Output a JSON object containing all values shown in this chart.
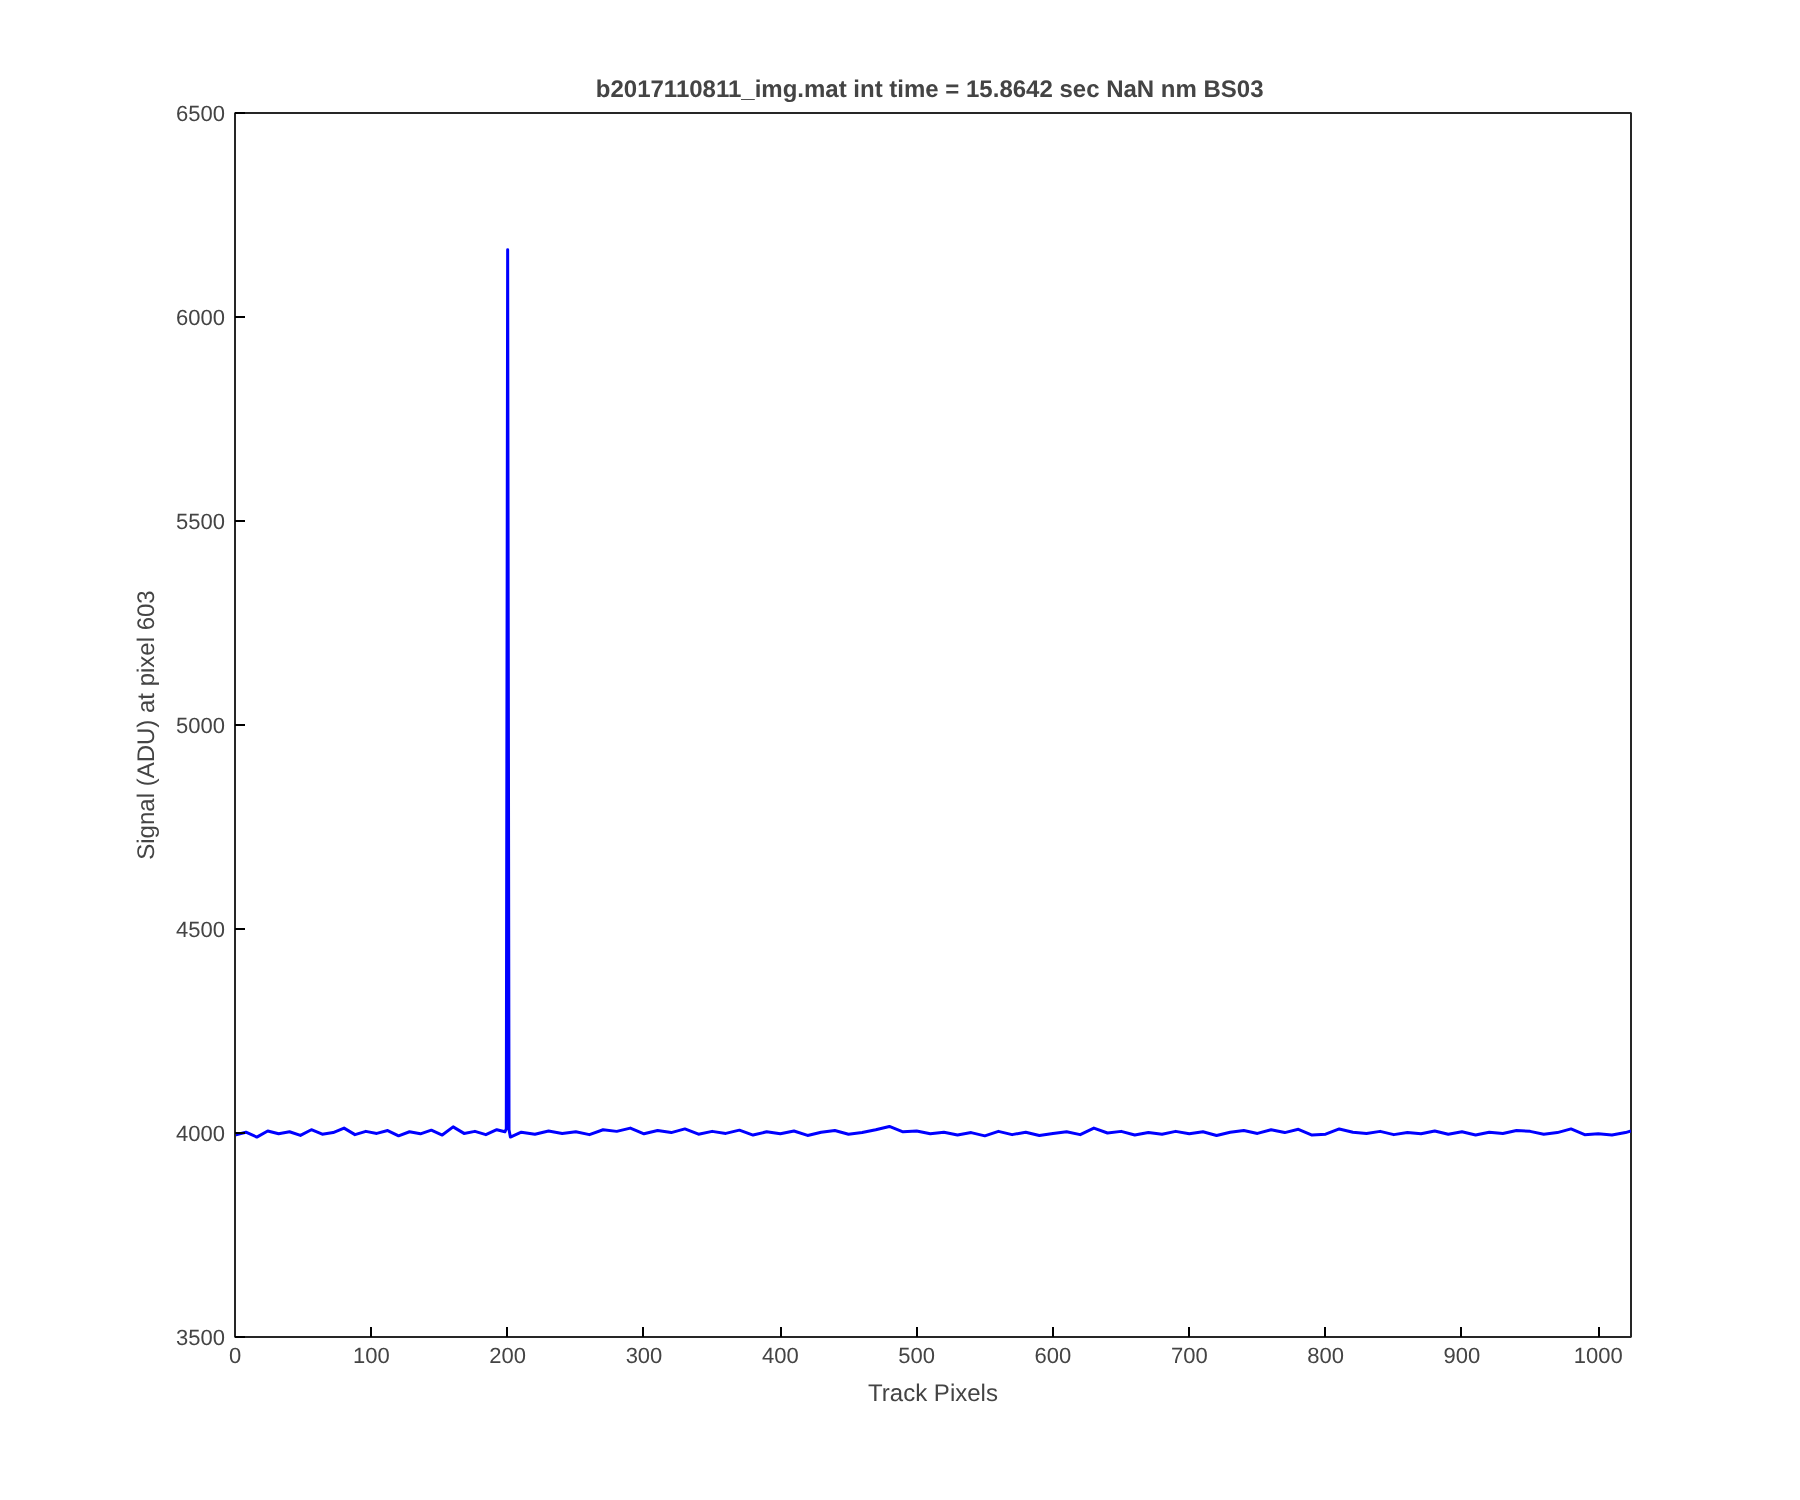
{
  "chart_data": {
    "type": "line",
    "title": "b2017110811_img.mat int time = 15.8642 sec  NaN nm BS03",
    "xlabel": "Track Pixels",
    "ylabel": "Signal (ADU) at pixel 603",
    "x": [
      0,
      8,
      16,
      24,
      32,
      40,
      48,
      56,
      64,
      72,
      80,
      88,
      96,
      104,
      112,
      120,
      128,
      136,
      144,
      152,
      160,
      168,
      176,
      184,
      192,
      198,
      199,
      200,
      201,
      202,
      210,
      220,
      230,
      240,
      250,
      260,
      270,
      280,
      290,
      300,
      310,
      320,
      330,
      340,
      350,
      360,
      370,
      380,
      390,
      400,
      410,
      420,
      430,
      440,
      450,
      460,
      470,
      480,
      490,
      500,
      510,
      520,
      530,
      540,
      550,
      560,
      570,
      580,
      590,
      600,
      610,
      620,
      630,
      640,
      650,
      660,
      670,
      680,
      690,
      700,
      710,
      720,
      730,
      740,
      750,
      760,
      770,
      780,
      790,
      800,
      810,
      820,
      830,
      840,
      850,
      860,
      870,
      880,
      890,
      900,
      910,
      920,
      930,
      940,
      950,
      960,
      970,
      980,
      990,
      1000,
      1010,
      1020,
      1024
    ],
    "series": [
      {
        "color": "#0000ff",
        "values": [
          3995,
          4002,
          3990,
          4005,
          3998,
          4003,
          3994,
          4008,
          3997,
          4001,
          4012,
          3996,
          4004,
          3999,
          4006,
          3993,
          4003,
          3998,
          4007,
          3995,
          4015,
          3999,
          4004,
          3996,
          4008,
          4003,
          4010,
          6165,
          4008,
          3990,
          4002,
          3997,
          4005,
          3999,
          4003,
          3996,
          4008,
          4004,
          4012,
          3998,
          4006,
          4001,
          4010,
          3997,
          4004,
          3999,
          4007,
          3995,
          4003,
          3998,
          4005,
          3994,
          4002,
          4006,
          3997,
          4001,
          4008,
          4016,
          4003,
          4005,
          3998,
          4002,
          3995,
          4001,
          3993,
          4004,
          3996,
          4002,
          3994,
          3999,
          4003,
          3996,
          4012,
          4000,
          4004,
          3995,
          4001,
          3997,
          4004,
          3998,
          4003,
          3994,
          4002,
          4006,
          3999,
          4008,
          4001,
          4009,
          3995,
          3997,
          4010,
          4002,
          3999,
          4004,
          3996,
          4001,
          3998,
          4005,
          3997,
          4003,
          3995,
          4002,
          3999,
          4006,
          4004,
          3997,
          4001,
          4010,
          3996,
          3998,
          3995,
          4001,
          4005
        ]
      }
    ],
    "xlim": [
      0,
      1024
    ],
    "xticks": [
      0,
      100,
      200,
      300,
      400,
      500,
      600,
      700,
      800,
      900,
      1000
    ],
    "ylim": [
      3500,
      6500
    ],
    "yticks": [
      3500,
      4000,
      4500,
      5000,
      5500,
      6000,
      6500
    ],
    "grid": false,
    "marker": "none",
    "line_style": "solid"
  }
}
